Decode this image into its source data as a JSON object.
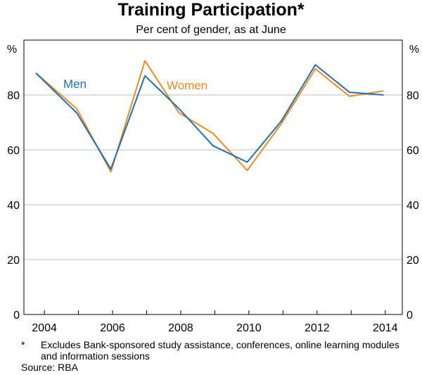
{
  "chart_data": {
    "type": "line",
    "title": "Training Participation*",
    "subtitle": "Per cent of gender, as at June",
    "ylabel_left": "%",
    "ylabel_right": "%",
    "x": [
      2003.75,
      2004.95,
      2005.95,
      2006.95,
      2007.95,
      2008.95,
      2009.95,
      2010.95,
      2011.95,
      2012.95,
      2013.95
    ],
    "x_ticks": [
      "2004",
      "2006",
      "2008",
      "2010",
      "2012",
      "2014"
    ],
    "x_tick_values": [
      2004,
      2006,
      2008,
      2010,
      2012,
      2014
    ],
    "y_ticks": [
      "0",
      "20",
      "40",
      "60",
      "80"
    ],
    "y_tick_values": [
      0,
      20,
      40,
      60,
      80
    ],
    "xlim": [
      2003.4,
      2014.5
    ],
    "ylim": [
      0,
      100
    ],
    "series": [
      {
        "name": "Men",
        "color": "#1f6fb4",
        "values": [
          88,
          73.5,
          53,
          87,
          75,
          61.5,
          55.5,
          70.5,
          91,
          81,
          80
        ]
      },
      {
        "name": "Women",
        "color": "#f28a1c",
        "values": [
          88,
          75,
          52,
          92.5,
          73.5,
          66,
          52.5,
          69.5,
          89.5,
          79.5,
          81.5
        ]
      }
    ]
  },
  "footnote": {
    "marker": "*",
    "text": "Excludes Bank-sponsored study assistance, conferences, online learning modules and information sessions",
    "source": "Source: RBA"
  }
}
